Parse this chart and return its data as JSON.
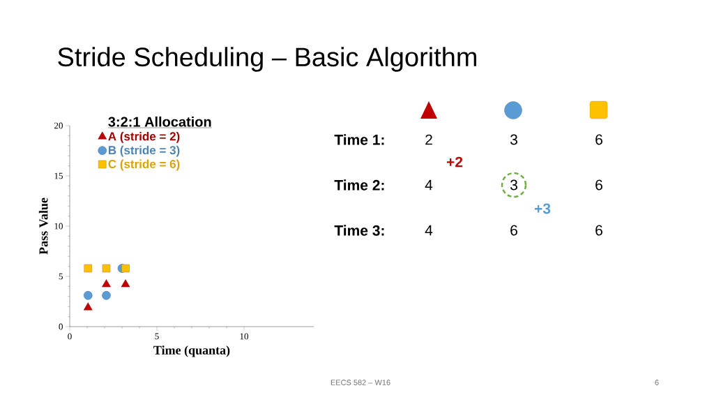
{
  "chart_data": [
    {
      "type": "scatter",
      "title": "Stride Scheduling – Basic Algorithm",
      "xlabel": "Time (quanta)",
      "ylabel": "Pass Value",
      "legend_title": "3:2:1 Allocation",
      "series": [
        {
          "name": "A (stride = 2)",
          "color": "#c00000",
          "marker": "triangle",
          "x": [
            1.05,
            2.1,
            3.2
          ],
          "values": [
            1.9,
            4.2,
            4.2
          ]
        },
        {
          "name": "B (stride = 3)",
          "color": "#5b9bd5",
          "marker": "circle",
          "x": [
            1.05,
            2.1,
            3.0
          ],
          "values": [
            3.1,
            3.1,
            5.8
          ]
        },
        {
          "name": "C (stride = 6)",
          "color": "#ffc000",
          "marker": "square",
          "x": [
            1.05,
            2.1,
            3.2
          ],
          "values": [
            5.8,
            5.8,
            5.8
          ]
        }
      ],
      "xlim": [
        0,
        14
      ],
      "ylim": [
        0,
        20
      ],
      "xticks": [
        0,
        5,
        10
      ],
      "yticks": [
        0,
        5,
        10,
        15,
        20
      ],
      "grid": false,
      "legend": "top left",
      "annotations": [
        "EECS 582 – W16",
        "6"
      ]
    },
    {
      "type": "other",
      "annotations": [
        "Time 1:",
        "2",
        "3",
        "6",
        "+2",
        "Time 2:",
        "4",
        "3",
        "6",
        "+3",
        "Time 3:",
        "4",
        "6",
        "6"
      ]
    }
  ]
}
